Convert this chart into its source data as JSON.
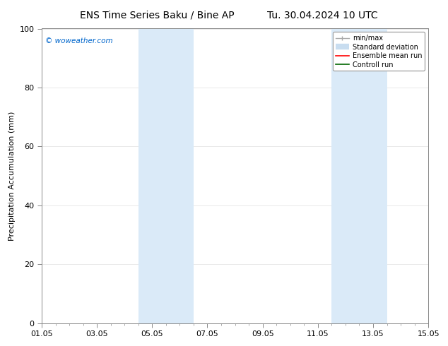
{
  "title_left": "ENS Time Series Baku / Bine AP",
  "title_right": "Tu. 30.04.2024 10 UTC",
  "ylabel": "Precipitation Accumulation (mm)",
  "ylim": [
    0,
    100
  ],
  "yticks": [
    0,
    20,
    40,
    60,
    80,
    100
  ],
  "xtick_labels": [
    "01.05",
    "03.05",
    "05.05",
    "07.05",
    "09.05",
    "11.05",
    "13.05",
    "15.05"
  ],
  "xtick_positions": [
    0,
    2,
    4,
    6,
    8,
    10,
    12,
    14
  ],
  "xlim": [
    0,
    14
  ],
  "shaded_regions": [
    {
      "x_start": 3.5,
      "x_end": 5.5,
      "color": "#daeaf8"
    },
    {
      "x_start": 10.5,
      "x_end": 12.5,
      "color": "#daeaf8"
    }
  ],
  "watermark_text": "© woweather.com",
  "watermark_color": "#0066cc",
  "background_color": "#ffffff",
  "plot_bg_color": "#ffffff",
  "title_fontsize": 10,
  "axis_label_fontsize": 8,
  "tick_fontsize": 8,
  "legend_fontsize": 7,
  "minmax_color": "#aaaaaa",
  "stddev_color": "#c8ddf0",
  "ensemble_color": "#ff0000",
  "control_color": "#006600"
}
